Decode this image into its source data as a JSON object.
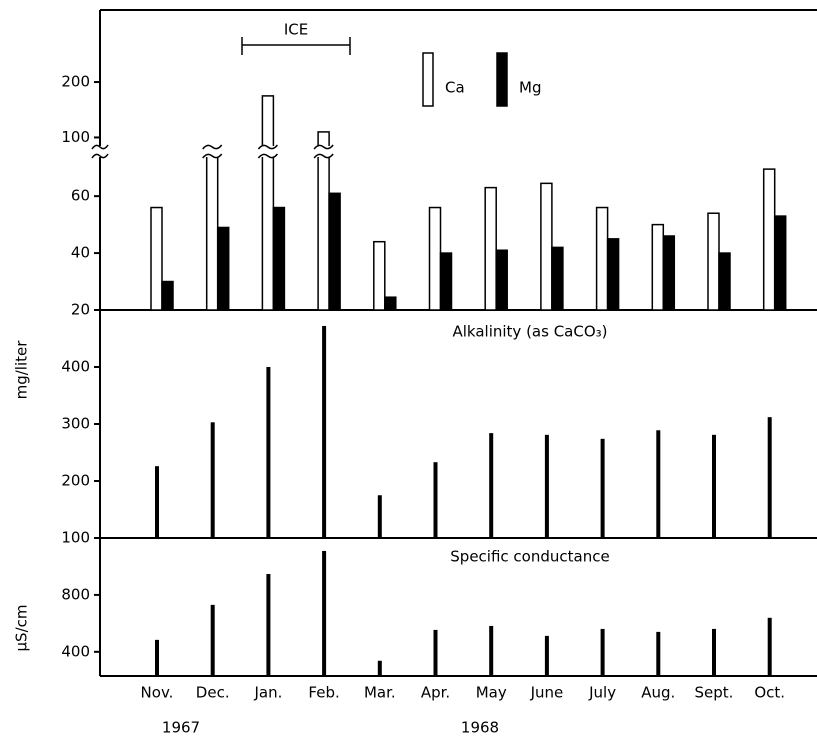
{
  "chart_data": [
    {
      "type": "bar",
      "annotation": "ICE",
      "series": [
        {
          "name": "Ca",
          "color": "#ffffff",
          "values": [
            56,
            73,
            175,
            110,
            44,
            56,
            63,
            64.5,
            56,
            50,
            54,
            69.5
          ]
        },
        {
          "name": "Mg",
          "color": "#000000",
          "values": [
            30,
            49,
            56,
            61,
            24.5,
            40,
            41,
            42,
            45,
            46,
            40,
            53
          ]
        }
      ],
      "ylim": [
        20,
        330
      ],
      "yticks": [
        20,
        40,
        60,
        100,
        200
      ],
      "axis_break": [
        72,
        90
      ]
    },
    {
      "type": "needle",
      "title": "Alkalinity (as CaCO₃)",
      "y_label": "mg/liter",
      "color": "#000000",
      "values": [
        226,
        303,
        400,
        472,
        175,
        233,
        284,
        281,
        274,
        289,
        281,
        312
      ],
      "ylim": [
        100,
        500
      ],
      "yticks": [
        100,
        200,
        300,
        400
      ]
    },
    {
      "type": "needle",
      "title": "Specific conductance",
      "y_label": "μS/cm",
      "color": "#000000",
      "categories": [
        "Nov.",
        "Dec.",
        "Jan.",
        "Feb.",
        "Mar.",
        "Apr.",
        "May",
        "June",
        "July",
        "Aug.",
        "Sept.",
        "Oct."
      ],
      "x_groups": [
        "1967",
        "1968"
      ],
      "values": [
        484,
        730,
        947,
        1109,
        337,
        554,
        582,
        512,
        561,
        540,
        561,
        639
      ],
      "ylim": [
        230,
        1200
      ],
      "yticks": [
        400,
        800
      ]
    }
  ]
}
